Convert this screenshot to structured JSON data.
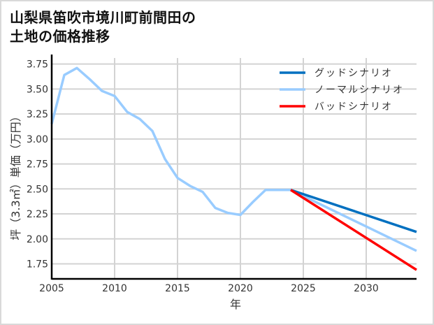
{
  "title_line1": "山梨県笛吹市境川町前間田の",
  "title_line2": "土地の価格推移",
  "chart_data": {
    "type": "line",
    "title": "山梨県笛吹市境川町前間田の土地の価格推移",
    "xlabel": "年",
    "ylabel": "坪（3.3㎡）単価（万円）",
    "xlim": [
      2005,
      2034
    ],
    "ylim": [
      1.6,
      3.81
    ],
    "xticks": [
      2005,
      2010,
      2015,
      2020,
      2025,
      2030
    ],
    "yticks": [
      1.75,
      2.0,
      2.25,
      2.5,
      2.75,
      3.0,
      3.25,
      3.5,
      3.75
    ],
    "ytick_labels": [
      "1.75",
      "2.00",
      "2.25",
      "2.50",
      "2.75",
      "3.00",
      "3.25",
      "3.50",
      "3.75"
    ],
    "grid": true,
    "legend_position": "upper right",
    "series": [
      {
        "name": "グッドシナリオ",
        "color": "#0070c0",
        "x": [
          2024,
          2034
        ],
        "y": [
          2.49,
          2.07
        ]
      },
      {
        "name": "ノーマルシナリオ",
        "color": "#99ccff",
        "x": [
          2005,
          2006,
          2007,
          2008,
          2009,
          2010,
          2011,
          2012,
          2013,
          2014,
          2015,
          2016,
          2017,
          2018,
          2019,
          2020,
          2021,
          2022,
          2023,
          2024,
          2034
        ],
        "y": [
          3.15,
          3.64,
          3.71,
          3.6,
          3.48,
          3.43,
          3.27,
          3.2,
          3.08,
          2.8,
          2.61,
          2.53,
          2.47,
          2.31,
          2.26,
          2.24,
          2.37,
          2.49,
          2.49,
          2.49,
          1.88
        ]
      },
      {
        "name": "バッドシナリオ",
        "color": "#ff0000",
        "x": [
          2024,
          2034
        ],
        "y": [
          2.49,
          1.69
        ]
      }
    ]
  }
}
